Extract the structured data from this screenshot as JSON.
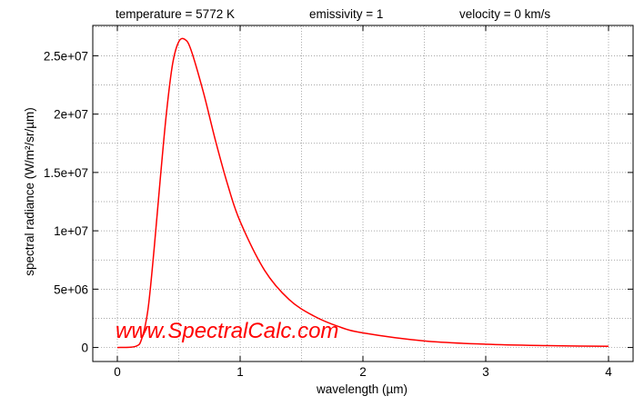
{
  "header": {
    "temperature": "temperature = 5772 K",
    "emissivity": "emissivity = 1",
    "velocity": "velocity = 0 km/s"
  },
  "watermark": "www.SpectralCalc.com",
  "colors": {
    "curve": "#ff0000",
    "watermark": "#ff0000",
    "axis": "#000000",
    "grid": "#8c8c8c"
  },
  "chart_data": {
    "type": "line",
    "xlabel": "wavelength (µm)",
    "ylabel": "spectral radiance (W/m²/sr/µm)",
    "xlim": [
      -0.2,
      4.2
    ],
    "ylim": [
      -1200000,
      27600000
    ],
    "grid": true,
    "x_ticks": [
      0,
      1,
      2,
      3,
      4
    ],
    "x_tick_labels": [
      "0",
      "1",
      "2",
      "3",
      "4"
    ],
    "y_ticks": [
      0,
      5000000,
      10000000,
      15000000,
      20000000,
      25000000
    ],
    "y_tick_labels": [
      "0",
      "5e+06",
      "1e+07",
      "1.5e+07",
      "2e+07",
      "2.5e+07"
    ],
    "series": [
      {
        "x": [
          0.0,
          0.15,
          0.2,
          0.25,
          0.3,
          0.35,
          0.4,
          0.45,
          0.5,
          0.55,
          0.6,
          0.7,
          0.8,
          0.9,
          1.0,
          1.2,
          1.4,
          1.6,
          1.8,
          2.0,
          2.5,
          3.0,
          3.5,
          4.0
        ],
        "values": [
          0,
          100000,
          800000,
          3300000,
          8500000,
          14500000,
          20100000,
          24300000,
          26200000,
          26400000,
          25500000,
          21900000,
          17700000,
          13900000,
          10800000,
          6600000,
          4100000,
          2700000,
          1800000,
          1250000,
          560000,
          280000,
          160000,
          100000
        ]
      }
    ]
  }
}
